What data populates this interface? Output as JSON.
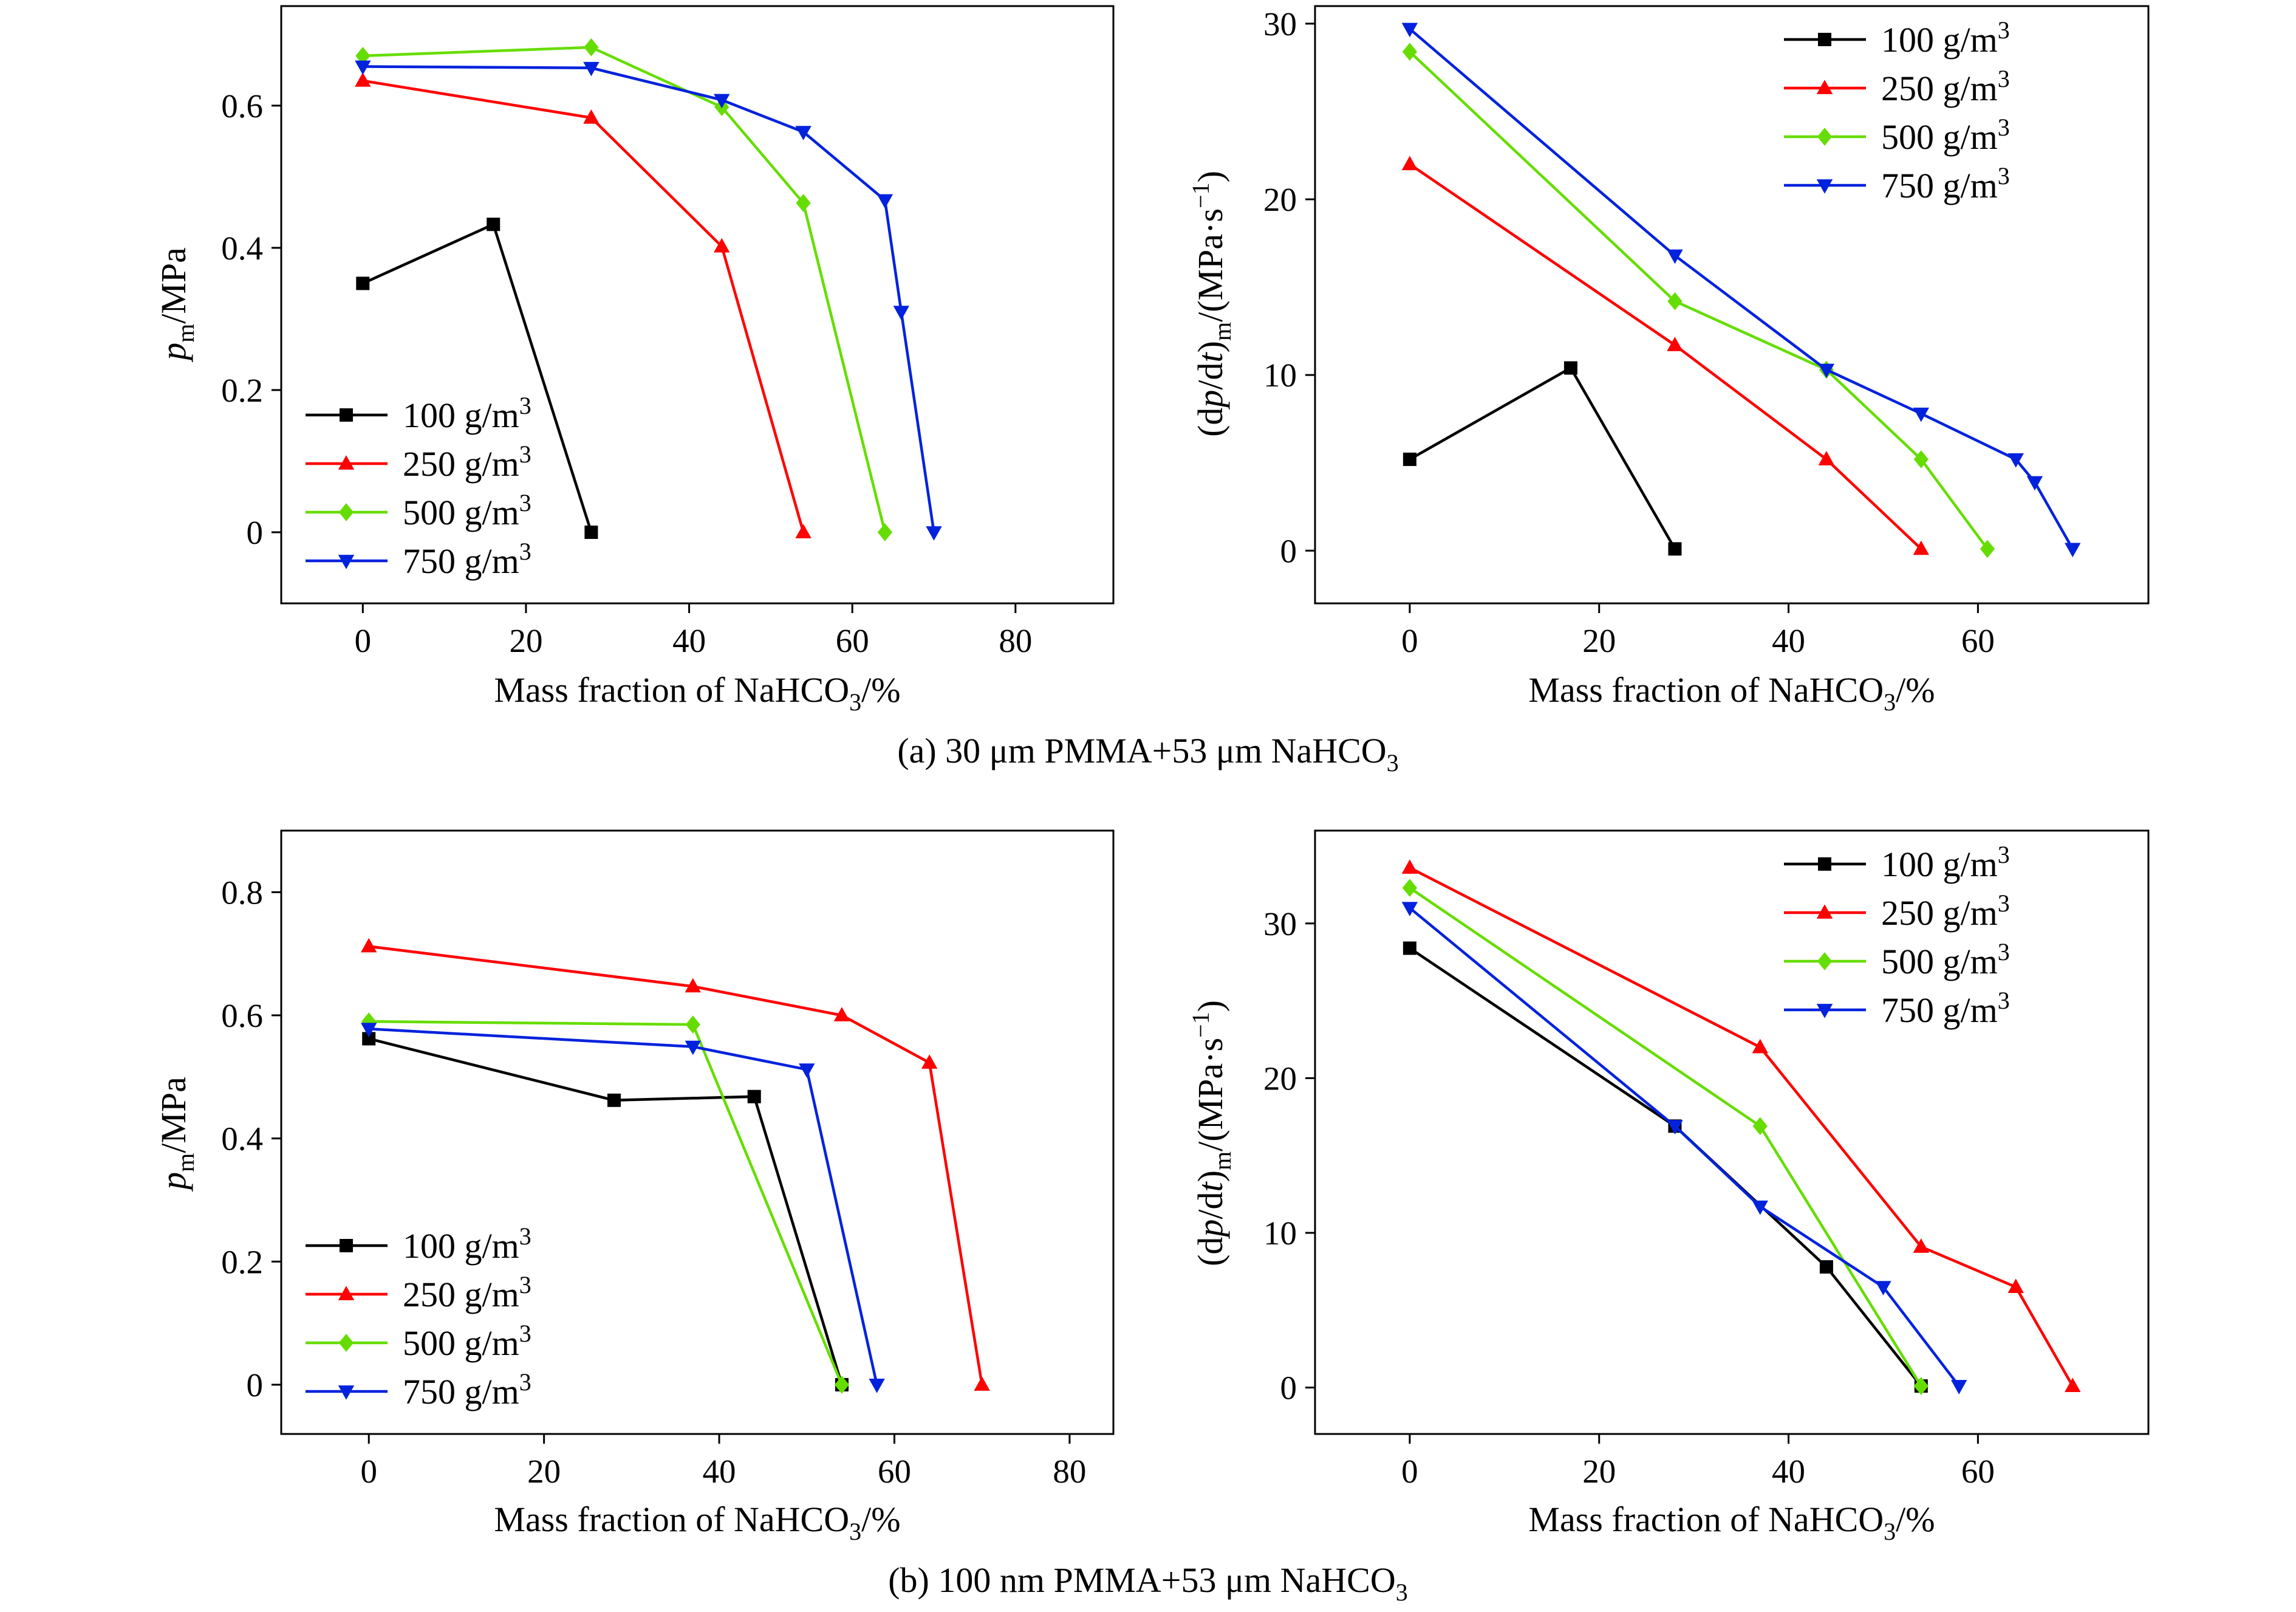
{
  "captions": {
    "a": {
      "main": "(a) 30 μm PMMA+53 μm NaHCO",
      "sub": "3"
    },
    "b": {
      "main": "(b) 100 nm PMMA+53 μm NaHCO",
      "sub": "3"
    }
  },
  "axis_text": {
    "x_main": "Mass fraction of NaHCO",
    "x_sub": "3",
    "x_end": "/%",
    "pm_p": "p",
    "pm_sub": "m",
    "pm_unit": "/MPa",
    "rate_open": "(d",
    "rate_p": "p",
    "rate_mid": "/d",
    "rate_t": "t",
    "rate_close": ")",
    "rate_sub": "m",
    "rate_unit": "/(MPa·s",
    "rate_exp": "−1",
    "rate_end": ")"
  },
  "legend": {
    "unit": "g/m",
    "unit_exp": "3"
  },
  "chart_data": [
    {
      "id": "a-left",
      "type": "line",
      "ylabel_kind": "pm",
      "xlim": [
        -10,
        92
      ],
      "ylim": [
        -0.1,
        0.74
      ],
      "xticks": [
        0,
        20,
        40,
        60,
        80
      ],
      "yticks": [
        0,
        0.2,
        0.4,
        0.6
      ],
      "ytick_labels": [
        "0",
        "0.2",
        "0.4",
        "0.6"
      ],
      "legend_placement": "bottom-left",
      "series": [
        {
          "name": "100",
          "color": "#000000",
          "marker": "square",
          "x": [
            0,
            16,
            28
          ],
          "y": [
            0.35,
            0.433,
            0.0
          ]
        },
        {
          "name": "250",
          "color": "#ff0000",
          "marker": "triangle-up",
          "x": [
            0,
            28,
            44,
            54
          ],
          "y": [
            0.635,
            0.583,
            0.402,
            0.0
          ]
        },
        {
          "name": "500",
          "color": "#66dd00",
          "marker": "diamond",
          "x": [
            0,
            28,
            44,
            54,
            64
          ],
          "y": [
            0.67,
            0.682,
            0.598,
            0.463,
            0.0
          ]
        },
        {
          "name": "750",
          "color": "#0022dd",
          "marker": "triangle-down",
          "x": [
            0,
            28,
            44,
            54,
            64,
            66,
            70
          ],
          "y": [
            0.655,
            0.653,
            0.608,
            0.563,
            0.467,
            0.31,
            0.0
          ]
        }
      ]
    },
    {
      "id": "a-right",
      "type": "line",
      "ylabel_kind": "rate",
      "xlim": [
        -10,
        78
      ],
      "ylim": [
        -3,
        31
      ],
      "xticks": [
        0,
        20,
        40,
        60
      ],
      "yticks": [
        0,
        10,
        20,
        30
      ],
      "ytick_labels": [
        "0",
        "10",
        "20",
        "30"
      ],
      "legend_placement": "top-right",
      "series": [
        {
          "name": "100",
          "color": "#000000",
          "marker": "square",
          "x": [
            0,
            17,
            28
          ],
          "y": [
            5.2,
            10.4,
            0.1
          ]
        },
        {
          "name": "250",
          "color": "#ff0000",
          "marker": "triangle-up",
          "x": [
            0,
            28,
            44,
            54
          ],
          "y": [
            22.0,
            11.7,
            5.2,
            0.1
          ]
        },
        {
          "name": "500",
          "color": "#66dd00",
          "marker": "diamond",
          "x": [
            0,
            28,
            44,
            54,
            61
          ],
          "y": [
            28.4,
            14.2,
            10.3,
            5.2,
            0.1
          ]
        },
        {
          "name": "750",
          "color": "#0022dd",
          "marker": "triangle-down",
          "x": [
            0,
            28,
            44,
            54,
            64,
            66,
            70
          ],
          "y": [
            29.7,
            16.8,
            10.3,
            7.8,
            5.2,
            3.9,
            0.1
          ]
        }
      ]
    },
    {
      "id": "b-left",
      "type": "line",
      "ylabel_kind": "pm",
      "xlim": [
        -10,
        85
      ],
      "ylim": [
        -0.08,
        0.9
      ],
      "xticks": [
        0,
        20,
        40,
        60,
        80
      ],
      "yticks": [
        0,
        0.2,
        0.4,
        0.6,
        0.8
      ],
      "ytick_labels": [
        "0",
        "0.2",
        "0.4",
        "0.6",
        "0.8"
      ],
      "legend_placement": "bottom-left",
      "series": [
        {
          "name": "100",
          "color": "#000000",
          "marker": "square",
          "x": [
            0,
            28,
            44,
            54
          ],
          "y": [
            0.562,
            0.462,
            0.468,
            0.0
          ]
        },
        {
          "name": "250",
          "color": "#ff0000",
          "marker": "triangle-up",
          "x": [
            0,
            37,
            54,
            64,
            70
          ],
          "y": [
            0.712,
            0.647,
            0.6,
            0.523,
            0.0
          ]
        },
        {
          "name": "500",
          "color": "#66dd00",
          "marker": "diamond",
          "x": [
            0,
            37,
            54
          ],
          "y": [
            0.59,
            0.585,
            0.0
          ]
        },
        {
          "name": "750",
          "color": "#0022dd",
          "marker": "triangle-down",
          "x": [
            0,
            37,
            50,
            58
          ],
          "y": [
            0.578,
            0.549,
            0.512,
            0.0
          ]
        }
      ]
    },
    {
      "id": "b-right",
      "type": "line",
      "ylabel_kind": "rate",
      "xlim": [
        -10,
        78
      ],
      "ylim": [
        -3,
        36
      ],
      "xticks": [
        0,
        20,
        40,
        60
      ],
      "yticks": [
        0,
        10,
        20,
        30
      ],
      "ytick_labels": [
        "0",
        "10",
        "20",
        "30"
      ],
      "legend_placement": "top-right",
      "series": [
        {
          "name": "100",
          "color": "#000000",
          "marker": "square",
          "x": [
            0,
            28,
            44,
            54
          ],
          "y": [
            28.4,
            16.9,
            7.8,
            0.1
          ]
        },
        {
          "name": "250",
          "color": "#ff0000",
          "marker": "triangle-up",
          "x": [
            0,
            37,
            54,
            64,
            70
          ],
          "y": [
            33.6,
            22.0,
            9.1,
            6.5,
            0.1
          ]
        },
        {
          "name": "500",
          "color": "#66dd00",
          "marker": "diamond",
          "x": [
            0,
            37,
            54
          ],
          "y": [
            32.3,
            16.9,
            0.1
          ]
        },
        {
          "name": "750",
          "color": "#0022dd",
          "marker": "triangle-down",
          "x": [
            0,
            28,
            37,
            50,
            58
          ],
          "y": [
            31.0,
            16.9,
            11.7,
            6.5,
            0.1
          ]
        }
      ]
    }
  ]
}
